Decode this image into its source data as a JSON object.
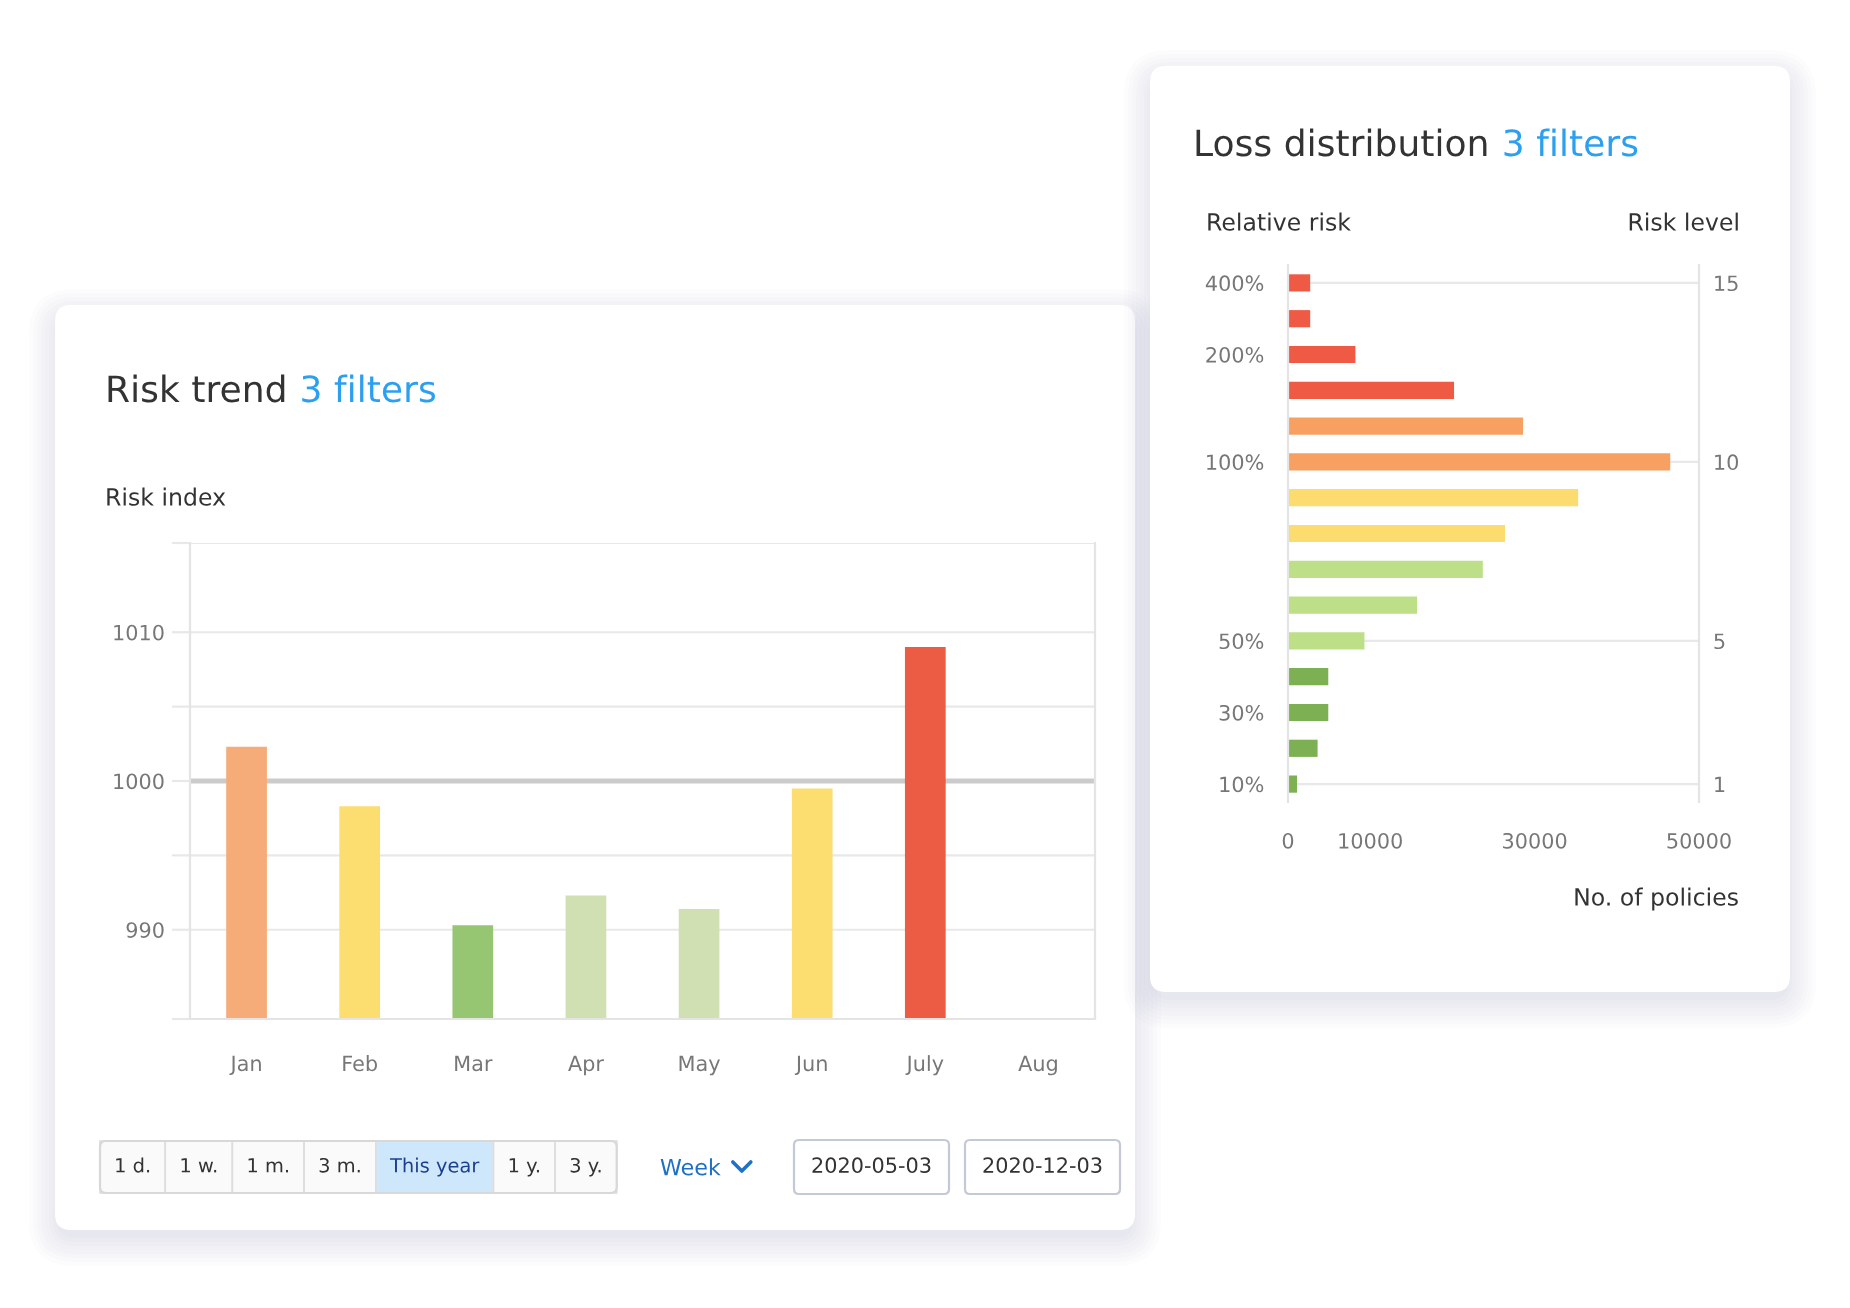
{
  "chart_data": [
    {
      "type": "bar",
      "title": "Risk trend",
      "subtitle": "3 filters",
      "ylabel": "Risk index",
      "categories": [
        "Jan",
        "Feb",
        "Mar",
        "Apr",
        "May",
        "Jun",
        "July",
        "Aug"
      ],
      "values": [
        1002.3,
        998.3,
        990.3,
        992.3,
        991.4,
        999.5,
        1009.0,
        null
      ],
      "colors": [
        "#f6ac78",
        "#fcdd70",
        "#97c672",
        "#d1e0b3",
        "#d1e0b3",
        "#fcdd70",
        "#ec5b43",
        "#eba47c"
      ],
      "ylim": [
        984,
        1016
      ],
      "yticks": [
        {
          "value": 984,
          "label": null
        },
        990,
        {
          "value": 995,
          "label": null
        },
        1000,
        {
          "value": 1005,
          "label": null
        },
        1010,
        {
          "value": 1016,
          "label": null
        }
      ],
      "grid": "y",
      "ref_lines": [
        {
          "axis": "y",
          "value": 1000,
          "color": "#cbcbcb"
        }
      ],
      "annotations": [
        "1 d.",
        "1 w.",
        "1 m.",
        "3 m.",
        "This year",
        "1 y.",
        "3 y.",
        "Week",
        "2020-05-03",
        "2020-12-03"
      ]
    },
    {
      "type": "bar",
      "orientation": "horizontal",
      "title": "Loss distribution",
      "subtitle": "3 filters",
      "xlabel": "No. of policies",
      "ylabel": "Relative risk",
      "y2label": "Risk level",
      "categories": [
        "400%",
        null,
        "200%",
        null,
        null,
        "100%",
        null,
        null,
        null,
        null,
        "50%",
        null,
        "30%",
        null,
        "10%"
      ],
      "values": [
        2700,
        2700,
        8200,
        20200,
        28600,
        46500,
        35300,
        26400,
        23700,
        15700,
        9300,
        4900,
        4900,
        3600,
        1100
      ],
      "colors": [
        "#ef5a44",
        "#ef5a44",
        "#ef5a44",
        "#ef5a44",
        "#f7a062",
        "#f7a062",
        "#fcdc6e",
        "#fcdc6e",
        "#bcdf88",
        "#bcdf88",
        "#bcdf88",
        "#7cb052",
        "#7cb052",
        "#7cb052",
        "#7cb052"
      ],
      "xlim": [
        0,
        50000
      ],
      "xticks": [
        0,
        10000,
        30000,
        50000
      ],
      "y2lim": [
        0.5,
        15.5
      ],
      "y2ticks": [
        1,
        5,
        10,
        15
      ],
      "grid": "y"
    }
  ]
}
